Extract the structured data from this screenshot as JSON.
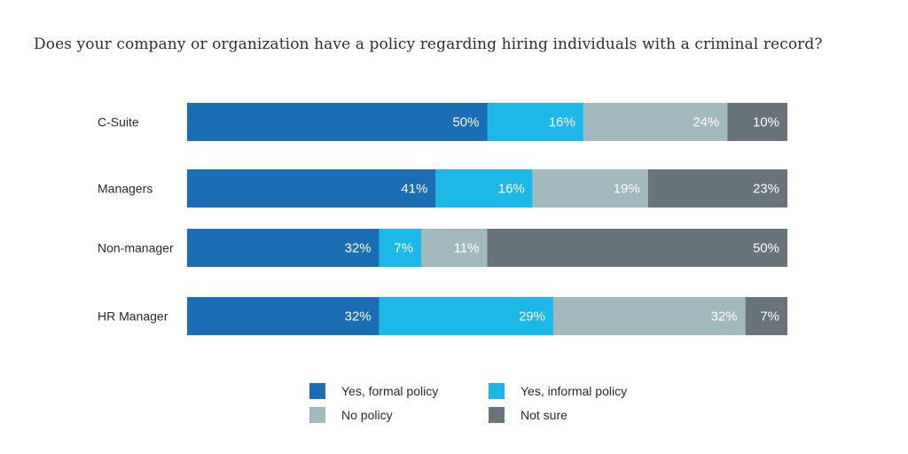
{
  "chart_data": {
    "type": "bar",
    "orientation": "horizontal",
    "stacked": true,
    "title": "Does your company or organization have a policy regarding hiring individuals with a criminal record?",
    "categories": [
      "C-Suite",
      "Managers",
      "Non-manager",
      "HR Manager"
    ],
    "series": [
      {
        "name": "Yes, formal policy",
        "color": "#1b6db4",
        "values": [
          50,
          41,
          32,
          32
        ]
      },
      {
        "name": "Yes, informal policy",
        "color": "#1db8e8",
        "values": [
          16,
          16,
          7,
          29
        ]
      },
      {
        "name": "No policy",
        "color": "#a2b9bd",
        "values": [
          24,
          19,
          11,
          32
        ]
      },
      {
        "name": "Not sure",
        "color": "#687479",
        "values": [
          10,
          23,
          50,
          7
        ]
      }
    ],
    "value_suffix": "%",
    "grid": false,
    "legend_position": "bottom"
  }
}
